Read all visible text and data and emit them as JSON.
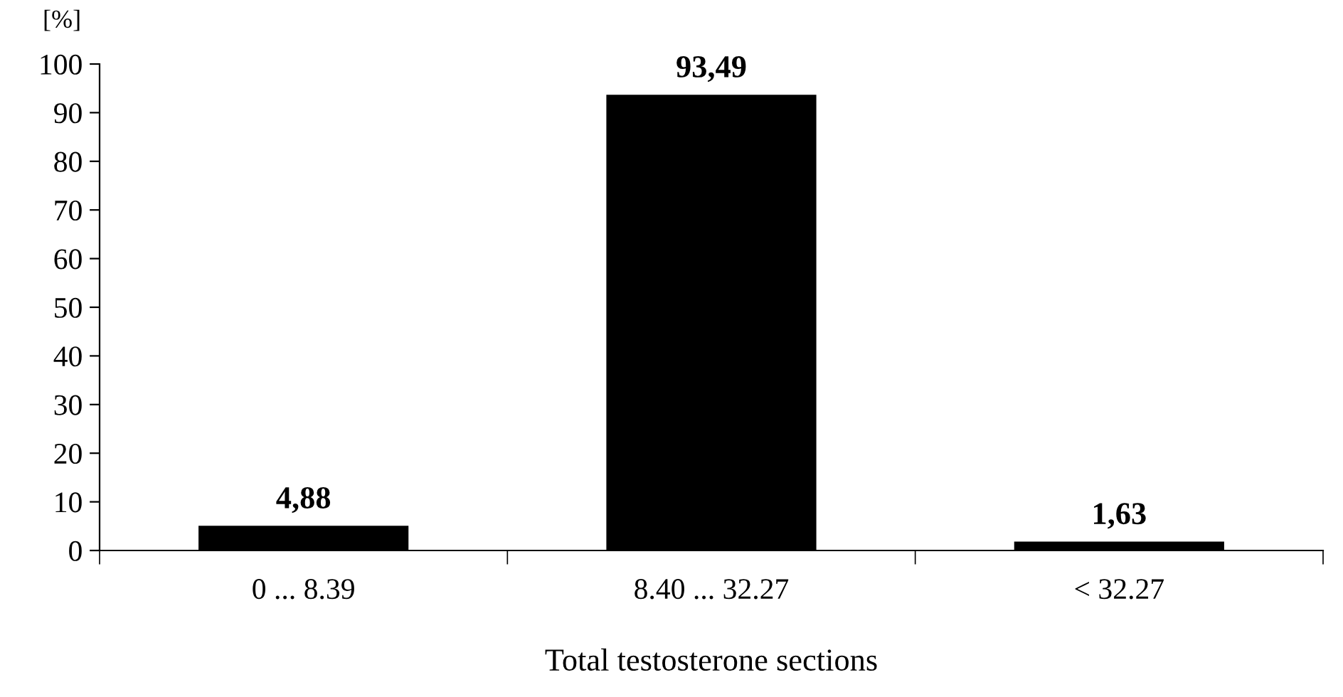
{
  "chart_data": {
    "type": "bar",
    "ylabel": "[%]",
    "xlabel": "Total testosterone sections",
    "categories": [
      "0 ... 8.39",
      "8.40 ... 32.27",
      "< 32.27"
    ],
    "values": [
      4.88,
      93.49,
      1.63
    ],
    "value_labels": [
      "4,88",
      "93,49",
      "1,63"
    ],
    "color": "#000000",
    "ylim": [
      0,
      100
    ],
    "yticks": [
      0,
      10,
      20,
      30,
      40,
      50,
      60,
      70,
      80,
      90,
      100
    ],
    "grid": false
  }
}
